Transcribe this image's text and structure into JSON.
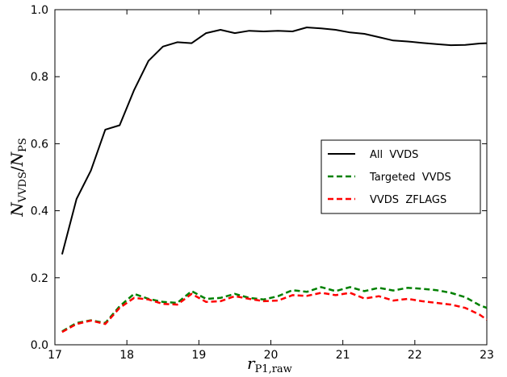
{
  "chart_data": {
    "type": "line",
    "xlabel": "r",
    "xlabel_sub": "P1,raw",
    "ylabel_parts": {
      "n1": "N",
      "s1": "VVDS",
      "slash": "/",
      "n2": "N",
      "s2": "PS"
    },
    "xlim": [
      17,
      23
    ],
    "ylim": [
      0,
      1.0
    ],
    "xticks": [
      17,
      18,
      19,
      20,
      21,
      22,
      23
    ],
    "yticks": [
      0.0,
      0.2,
      0.4,
      0.6,
      0.8,
      1.0
    ],
    "xtick_labels": [
      "17",
      "18",
      "19",
      "20",
      "21",
      "22",
      "23"
    ],
    "ytick_labels": [
      "0.0",
      "0.2",
      "0.4",
      "0.6",
      "0.8",
      "1.0"
    ],
    "grid": false,
    "legend_position": "center-right",
    "x": [
      17.1,
      17.3,
      17.5,
      17.7,
      17.9,
      18.1,
      18.3,
      18.5,
      18.7,
      18.9,
      19.1,
      19.3,
      19.5,
      19.7,
      19.9,
      20.1,
      20.3,
      20.5,
      20.7,
      20.9,
      21.1,
      21.3,
      21.5,
      21.7,
      21.9,
      22.1,
      22.3,
      22.5,
      22.7,
      22.9,
      23.0
    ],
    "series": [
      {
        "name": "All  VVDS",
        "color": "#000000",
        "dash": "solid",
        "values": [
          0.27,
          0.435,
          0.52,
          0.642,
          0.655,
          0.76,
          0.847,
          0.89,
          0.903,
          0.9,
          0.93,
          0.94,
          0.93,
          0.937,
          0.935,
          0.937,
          0.935,
          0.947,
          0.944,
          0.94,
          0.932,
          0.928,
          0.918,
          0.908,
          0.905,
          0.901,
          0.897,
          0.894,
          0.895,
          0.899,
          0.9
        ]
      },
      {
        "name": "Targeted  VVDS",
        "color": "#008000",
        "dash": "dashed",
        "values": [
          0.04,
          0.065,
          0.073,
          0.065,
          0.115,
          0.152,
          0.137,
          0.128,
          0.125,
          0.16,
          0.137,
          0.14,
          0.152,
          0.14,
          0.135,
          0.145,
          0.163,
          0.158,
          0.172,
          0.16,
          0.172,
          0.16,
          0.17,
          0.162,
          0.17,
          0.167,
          0.163,
          0.155,
          0.142,
          0.118,
          0.11
        ]
      },
      {
        "name": "VVDS  ZFLAGS",
        "color": "#ff0000",
        "dash": "dashed",
        "values": [
          0.038,
          0.062,
          0.072,
          0.062,
          0.11,
          0.14,
          0.135,
          0.122,
          0.12,
          0.152,
          0.128,
          0.13,
          0.145,
          0.137,
          0.13,
          0.132,
          0.148,
          0.146,
          0.155,
          0.148,
          0.155,
          0.138,
          0.145,
          0.132,
          0.137,
          0.13,
          0.125,
          0.12,
          0.11,
          0.09,
          0.075
        ]
      }
    ]
  }
}
